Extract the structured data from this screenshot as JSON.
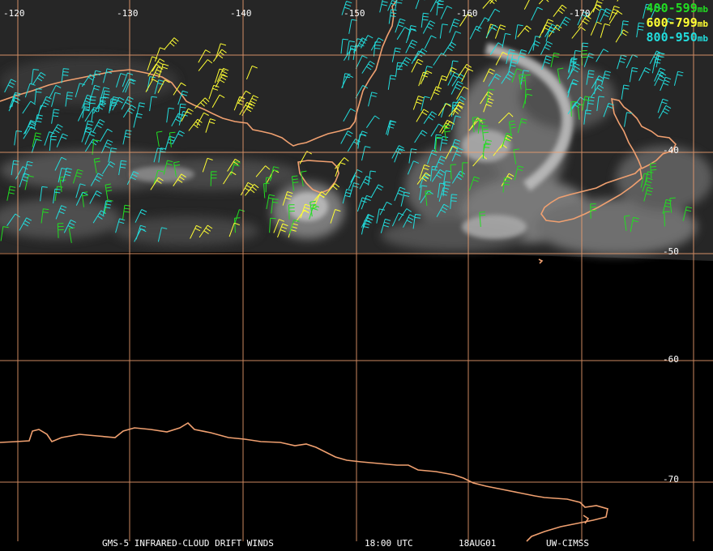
{
  "map": {
    "longitude_labels": [
      "-120",
      "-130",
      "-140",
      "-150",
      "-160",
      "-170"
    ],
    "latitude_labels": [
      "-40",
      "-50",
      "-60",
      "-70"
    ],
    "legend": [
      {
        "range": "400-599",
        "unit": "mb",
        "color": "#22dd22"
      },
      {
        "range": "600-799",
        "unit": "mb",
        "color": "#ffff33"
      },
      {
        "range": "800-950",
        "unit": "mb",
        "color": "#22dddd"
      }
    ],
    "footer": {
      "product": "GMS-5 INFRARED-CLOUD DRIFT WINDS",
      "time": "18:00 UTC",
      "date": "18AUG01",
      "source": "UW-CIMSS"
    },
    "colors": {
      "grid": "#f0a070",
      "coastline": "#f0a070",
      "background": "#000000",
      "cloud_image_base": "#2a2a2a"
    }
  }
}
